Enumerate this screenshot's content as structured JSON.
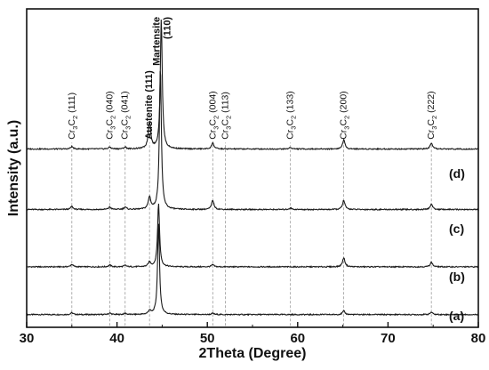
{
  "chart_data": {
    "type": "line",
    "title": "",
    "xlabel": "2Theta (Degree)",
    "ylabel": "Intensity (a.u.)",
    "xlim": [
      30,
      80
    ],
    "xticks": [
      30,
      40,
      50,
      60,
      70,
      80
    ],
    "yticks_shown": false,
    "grid": false,
    "legend": "none",
    "line_color": "#1a1a1a",
    "reference_line_color": "#9a9a9a",
    "series": [
      {
        "name": "(a)",
        "baseline": 0.04,
        "scale": 0.95,
        "peaks": [
          {
            "x": 35.0,
            "h": 0.006
          },
          {
            "x": 39.2,
            "h": 0.005
          },
          {
            "x": 40.9,
            "h": 0.004
          },
          {
            "x": 43.6,
            "h": 0.012
          },
          {
            "x": 44.6,
            "h": 0.3
          },
          {
            "x": 50.6,
            "h": 0.004
          },
          {
            "x": 65.1,
            "h": 0.012
          },
          {
            "x": 74.8,
            "h": 0.008
          }
        ]
      },
      {
        "name": "(b)",
        "baseline": 0.19,
        "scale": 0.95,
        "peaks": [
          {
            "x": 35.0,
            "h": 0.008
          },
          {
            "x": 39.2,
            "h": 0.006
          },
          {
            "x": 40.9,
            "h": 0.005
          },
          {
            "x": 43.6,
            "h": 0.015
          },
          {
            "x": 44.6,
            "h": 0.21
          },
          {
            "x": 50.6,
            "h": 0.007
          },
          {
            "x": 65.1,
            "h": 0.03
          },
          {
            "x": 74.8,
            "h": 0.015
          }
        ]
      },
      {
        "name": "(c)",
        "baseline": 0.37,
        "scale": 0.95,
        "peaks": [
          {
            "x": 35.0,
            "h": 0.01
          },
          {
            "x": 39.2,
            "h": 0.008
          },
          {
            "x": 40.9,
            "h": 0.008
          },
          {
            "x": 43.6,
            "h": 0.04
          },
          {
            "x": 44.8,
            "h": 0.47
          },
          {
            "x": 50.6,
            "h": 0.03
          },
          {
            "x": 59.2,
            "h": 0.005
          },
          {
            "x": 65.1,
            "h": 0.03
          },
          {
            "x": 74.8,
            "h": 0.018
          }
        ]
      },
      {
        "name": "(d)",
        "baseline": 0.56,
        "scale": 0.95,
        "peaks": [
          {
            "x": 35.0,
            "h": 0.008
          },
          {
            "x": 39.2,
            "h": 0.006
          },
          {
            "x": 40.9,
            "h": 0.006
          },
          {
            "x": 43.6,
            "h": 0.09
          },
          {
            "x": 44.9,
            "h": 0.43
          },
          {
            "x": 50.6,
            "h": 0.02
          },
          {
            "x": 59.2,
            "h": 0.005
          },
          {
            "x": 65.1,
            "h": 0.03
          },
          {
            "x": 74.8,
            "h": 0.018
          }
        ]
      }
    ],
    "reference_lines": [
      35.0,
      39.2,
      40.9,
      43.6,
      50.6,
      52.0,
      59.2,
      65.1,
      74.8
    ],
    "peak_labels": [
      {
        "x": 35.0,
        "text": "Cr3C2 (111)",
        "segments": [
          [
            "Cr",
            ""
          ],
          [
            "3",
            "sub"
          ],
          [
            "C",
            ""
          ],
          [
            "2",
            "sub"
          ],
          [
            " (111)",
            ""
          ]
        ],
        "bold": false
      },
      {
        "x": 39.2,
        "text": "Cr3C2 (040)",
        "segments": [
          [
            "Cr",
            ""
          ],
          [
            "3",
            "sub"
          ],
          [
            "C",
            ""
          ],
          [
            "2",
            "sub"
          ],
          [
            " (040)",
            ""
          ]
        ],
        "bold": false
      },
      {
        "x": 40.9,
        "text": "Cr3C2 (041)",
        "segments": [
          [
            "Cr",
            ""
          ],
          [
            "3",
            "sub"
          ],
          [
            "C",
            ""
          ],
          [
            "2",
            "sub"
          ],
          [
            " (041)",
            ""
          ]
        ],
        "bold": false
      },
      {
        "x": 43.6,
        "text": "Austenite (111)",
        "segments": [
          [
            "Austenite (111)",
            ""
          ]
        ],
        "bold": true
      },
      {
        "x": 50.6,
        "text": "Cr3C2 (004)",
        "segments": [
          [
            "Cr",
            ""
          ],
          [
            "3",
            "sub"
          ],
          [
            "C",
            ""
          ],
          [
            "2",
            "sub"
          ],
          [
            " (004)",
            ""
          ]
        ],
        "bold": false
      },
      {
        "x": 52.0,
        "text": "Cr3C2 (113)",
        "segments": [
          [
            "Cr",
            ""
          ],
          [
            "3",
            "sub"
          ],
          [
            "C",
            ""
          ],
          [
            "2",
            "sub"
          ],
          [
            " (113)",
            ""
          ]
        ],
        "bold": false
      },
      {
        "x": 59.2,
        "text": "Cr3C2 (133)",
        "segments": [
          [
            "Cr",
            ""
          ],
          [
            "3",
            "sub"
          ],
          [
            "C",
            ""
          ],
          [
            "2",
            "sub"
          ],
          [
            " (133)",
            ""
          ]
        ],
        "bold": false
      },
      {
        "x": 65.1,
        "text": "Cr3C2 (200)",
        "segments": [
          [
            "Cr",
            ""
          ],
          [
            "3",
            "sub"
          ],
          [
            "C",
            ""
          ],
          [
            "2",
            "sub"
          ],
          [
            " (200)",
            ""
          ]
        ],
        "bold": false
      },
      {
        "x": 74.8,
        "text": "Cr3C2 (222)",
        "segments": [
          [
            "Cr",
            ""
          ],
          [
            "3",
            "sub"
          ],
          [
            "C",
            ""
          ],
          [
            "2",
            "sub"
          ],
          [
            " (222)",
            ""
          ]
        ],
        "bold": false
      }
    ],
    "martensite_label": {
      "x": 44.9,
      "line1": "Martensite",
      "line2": "(110)"
    }
  }
}
